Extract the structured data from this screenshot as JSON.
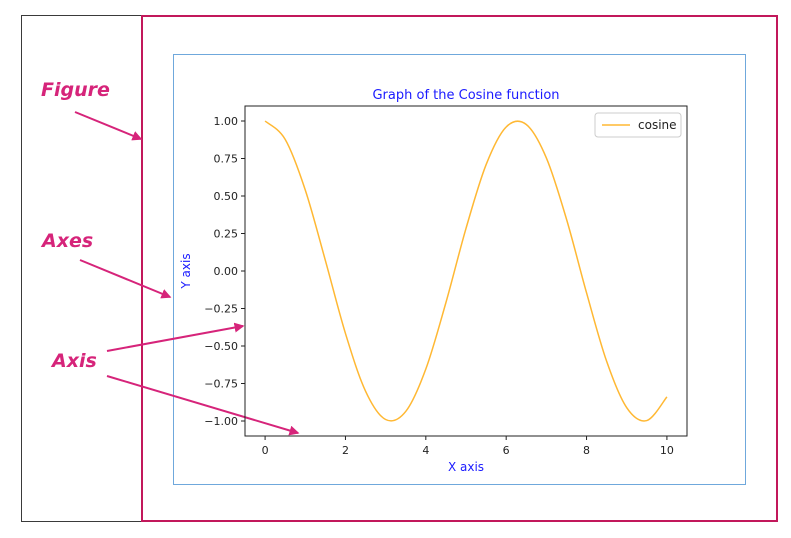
{
  "annotations": {
    "figure_label": "Figure",
    "axes_label": "Axes",
    "axis_label": "Axis"
  },
  "colors": {
    "annotation": "#d6247a",
    "figure_border": "#c2185b",
    "axes_border": "#6fa8dc",
    "curve": "#ffb833",
    "plot_text": "#1a1aff"
  },
  "chart_data": {
    "type": "line",
    "title": "Graph of the Cosine function",
    "xlabel": "X axis",
    "ylabel": "Y axis",
    "xlim": [
      -0.5,
      10.5
    ],
    "ylim": [
      -1.1,
      1.1
    ],
    "xticks": [
      0,
      2,
      4,
      6,
      8,
      10
    ],
    "yticks": [
      -1.0,
      -0.75,
      -0.5,
      -0.25,
      0.0,
      0.25,
      0.5,
      0.75,
      1.0
    ],
    "xtick_labels": [
      "0",
      "2",
      "4",
      "6",
      "8",
      "10"
    ],
    "ytick_labels": [
      "−1.00",
      "−0.75",
      "−0.50",
      "−0.25",
      "0.00",
      "0.25",
      "0.50",
      "0.75",
      "1.00"
    ],
    "grid": false,
    "legend": {
      "position": "top-right"
    },
    "series": [
      {
        "name": "cosine",
        "color": "#ffb833",
        "x": [
          0,
          0.5,
          1,
          1.5,
          2,
          2.5,
          3,
          3.5,
          4,
          4.5,
          5,
          5.5,
          6,
          6.5,
          7,
          7.5,
          8,
          8.5,
          9,
          9.5,
          10
        ],
        "y": [
          1.0,
          0.8776,
          0.5403,
          0.0707,
          -0.4161,
          -0.8011,
          -0.99,
          -0.9365,
          -0.6536,
          -0.2108,
          0.2837,
          0.7087,
          0.9602,
          0.9766,
          0.7539,
          0.3466,
          -0.1455,
          -0.602,
          -0.9111,
          -0.9972,
          -0.8391
        ]
      }
    ]
  }
}
